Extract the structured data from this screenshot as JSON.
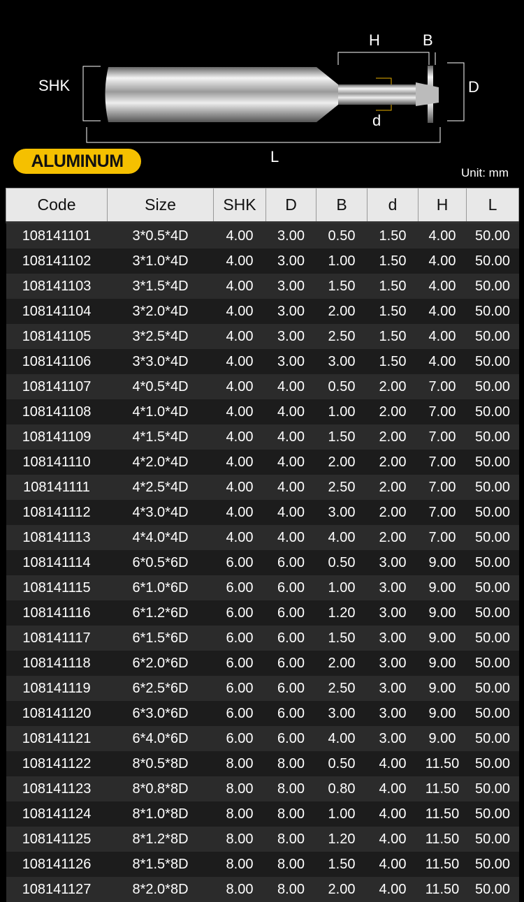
{
  "diagram": {
    "shk": "SHK",
    "h": "H",
    "b": "B",
    "d_upper": "D",
    "d_lower": "d",
    "l": "L"
  },
  "badge": "ALUMINUM",
  "unit": "Unit: mm",
  "columns": [
    "Code",
    "Size",
    "SHK",
    "D",
    "B",
    "d",
    "H",
    "L"
  ],
  "rows": [
    [
      "108141101",
      "3*0.5*4D",
      "4.00",
      "3.00",
      "0.50",
      "1.50",
      "4.00",
      "50.00"
    ],
    [
      "108141102",
      "3*1.0*4D",
      "4.00",
      "3.00",
      "1.00",
      "1.50",
      "4.00",
      "50.00"
    ],
    [
      "108141103",
      "3*1.5*4D",
      "4.00",
      "3.00",
      "1.50",
      "1.50",
      "4.00",
      "50.00"
    ],
    [
      "108141104",
      "3*2.0*4D",
      "4.00",
      "3.00",
      "2.00",
      "1.50",
      "4.00",
      "50.00"
    ],
    [
      "108141105",
      "3*2.5*4D",
      "4.00",
      "3.00",
      "2.50",
      "1.50",
      "4.00",
      "50.00"
    ],
    [
      "108141106",
      "3*3.0*4D",
      "4.00",
      "3.00",
      "3.00",
      "1.50",
      "4.00",
      "50.00"
    ],
    [
      "108141107",
      "4*0.5*4D",
      "4.00",
      "4.00",
      "0.50",
      "2.00",
      "7.00",
      "50.00"
    ],
    [
      "108141108",
      "4*1.0*4D",
      "4.00",
      "4.00",
      "1.00",
      "2.00",
      "7.00",
      "50.00"
    ],
    [
      "108141109",
      "4*1.5*4D",
      "4.00",
      "4.00",
      "1.50",
      "2.00",
      "7.00",
      "50.00"
    ],
    [
      "108141110",
      "4*2.0*4D",
      "4.00",
      "4.00",
      "2.00",
      "2.00",
      "7.00",
      "50.00"
    ],
    [
      "108141111",
      "4*2.5*4D",
      "4.00",
      "4.00",
      "2.50",
      "2.00",
      "7.00",
      "50.00"
    ],
    [
      "108141112",
      "4*3.0*4D",
      "4.00",
      "4.00",
      "3.00",
      "2.00",
      "7.00",
      "50.00"
    ],
    [
      "108141113",
      "4*4.0*4D",
      "4.00",
      "4.00",
      "4.00",
      "2.00",
      "7.00",
      "50.00"
    ],
    [
      "108141114",
      "6*0.5*6D",
      "6.00",
      "6.00",
      "0.50",
      "3.00",
      "9.00",
      "50.00"
    ],
    [
      "108141115",
      "6*1.0*6D",
      "6.00",
      "6.00",
      "1.00",
      "3.00",
      "9.00",
      "50.00"
    ],
    [
      "108141116",
      "6*1.2*6D",
      "6.00",
      "6.00",
      "1.20",
      "3.00",
      "9.00",
      "50.00"
    ],
    [
      "108141117",
      "6*1.5*6D",
      "6.00",
      "6.00",
      "1.50",
      "3.00",
      "9.00",
      "50.00"
    ],
    [
      "108141118",
      "6*2.0*6D",
      "6.00",
      "6.00",
      "2.00",
      "3.00",
      "9.00",
      "50.00"
    ],
    [
      "108141119",
      "6*2.5*6D",
      "6.00",
      "6.00",
      "2.50",
      "3.00",
      "9.00",
      "50.00"
    ],
    [
      "108141120",
      "6*3.0*6D",
      "6.00",
      "6.00",
      "3.00",
      "3.00",
      "9.00",
      "50.00"
    ],
    [
      "108141121",
      "6*4.0*6D",
      "6.00",
      "6.00",
      "4.00",
      "3.00",
      "9.00",
      "50.00"
    ],
    [
      "108141122",
      "8*0.5*8D",
      "8.00",
      "8.00",
      "0.50",
      "4.00",
      "11.50",
      "50.00"
    ],
    [
      "108141123",
      "8*0.8*8D",
      "8.00",
      "8.00",
      "0.80",
      "4.00",
      "11.50",
      "50.00"
    ],
    [
      "108141124",
      "8*1.0*8D",
      "8.00",
      "8.00",
      "1.00",
      "4.00",
      "11.50",
      "50.00"
    ],
    [
      "108141125",
      "8*1.2*8D",
      "8.00",
      "8.00",
      "1.20",
      "4.00",
      "11.50",
      "50.00"
    ],
    [
      "108141126",
      "8*1.5*8D",
      "8.00",
      "8.00",
      "1.50",
      "4.00",
      "11.50",
      "50.00"
    ],
    [
      "108141127",
      "8*2.0*8D",
      "8.00",
      "8.00",
      "2.00",
      "4.00",
      "11.50",
      "50.00"
    ]
  ]
}
